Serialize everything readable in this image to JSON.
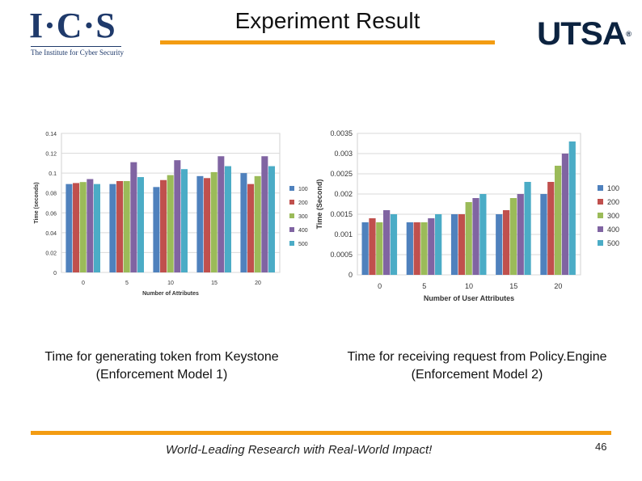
{
  "header": {
    "logo_left_text": "I·C·S",
    "logo_left_subtitle": "The Institute for Cyber Security",
    "title": "Experiment Result",
    "logo_right_text": "UTSA",
    "logo_right_mark": "®"
  },
  "colors": {
    "accent_orange": "#f39c12",
    "ics_navy": "#1f3a6b",
    "utsa_navy": "#0c2340",
    "series": [
      "#4f81bd",
      "#c0504d",
      "#9bbb59",
      "#8064a2",
      "#4bacc6"
    ]
  },
  "chart_data": [
    {
      "type": "bar",
      "title": "",
      "xlabel": "Number of Attributes",
      "ylabel": "Time (seconds)",
      "categories": [
        "0",
        "5",
        "10",
        "15",
        "20"
      ],
      "ylim": [
        0,
        0.14
      ],
      "yticks": [
        "0",
        "0.02",
        "0.04",
        "0.06",
        "0.08",
        "0.1",
        "0.12",
        "0.14"
      ],
      "grid": true,
      "legend_position": "right",
      "series": [
        {
          "name": "100",
          "values": [
            0.089,
            0.089,
            0.086,
            0.097,
            0.1
          ]
        },
        {
          "name": "200",
          "values": [
            0.09,
            0.092,
            0.093,
            0.095,
            0.089
          ]
        },
        {
          "name": "300",
          "values": [
            0.091,
            0.092,
            0.098,
            0.101,
            0.097
          ]
        },
        {
          "name": "400",
          "values": [
            0.094,
            0.111,
            0.113,
            0.117,
            0.117
          ]
        },
        {
          "name": "500",
          "values": [
            0.089,
            0.096,
            0.104,
            0.107,
            0.107
          ]
        }
      ]
    },
    {
      "type": "bar",
      "title": "",
      "xlabel": "Number of User Attributes",
      "ylabel": "Time (Second)",
      "categories": [
        "0",
        "5",
        "10",
        "15",
        "20"
      ],
      "ylim": [
        0,
        0.0035
      ],
      "yticks": [
        "0",
        "0.0005",
        "0.001",
        "0.0015",
        "0.002",
        "0.0025",
        "0.003",
        "0.0035"
      ],
      "grid": true,
      "legend_position": "right",
      "series": [
        {
          "name": "100",
          "values": [
            0.0013,
            0.0013,
            0.0015,
            0.0015,
            0.002
          ]
        },
        {
          "name": "200",
          "values": [
            0.0014,
            0.0013,
            0.0015,
            0.0016,
            0.0023
          ]
        },
        {
          "name": "300",
          "values": [
            0.0013,
            0.0013,
            0.0018,
            0.0019,
            0.0027
          ]
        },
        {
          "name": "400",
          "values": [
            0.0016,
            0.0014,
            0.0019,
            0.002,
            0.003
          ]
        },
        {
          "name": "500",
          "values": [
            0.0015,
            0.0015,
            0.002,
            0.0023,
            0.0033
          ]
        }
      ]
    }
  ],
  "captions": {
    "left": "Time for generating token from Keystone (Enforcement Model 1)",
    "right": "Time for receiving request from Policy.Engine (Enforcement Model 2)"
  },
  "footer": {
    "tagline": "World-Leading Research with Real-World Impact!",
    "page_number": "46"
  }
}
